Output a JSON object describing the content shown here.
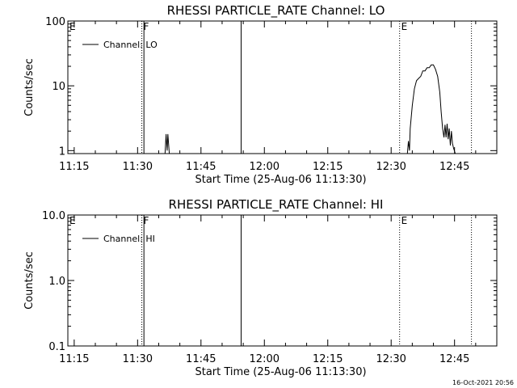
{
  "chart_data": [
    {
      "type": "line",
      "title": "RHESSI PARTICLE_RATE Channel: LO",
      "xlabel": "Start Time (25-Aug-06 11:13:30)",
      "ylabel": "Counts/sec",
      "xlim": [
        "11:13:30",
        "12:55:00"
      ],
      "yscale": "log",
      "ylim": [
        0.9,
        100
      ],
      "x_ticks": [
        "11:15",
        "11:30",
        "11:45",
        "12:00",
        "12:15",
        "12:30",
        "12:45"
      ],
      "y_ticks": [
        {
          "value": 1,
          "label": "1"
        },
        {
          "value": 10,
          "label": "10"
        },
        {
          "value": 100,
          "label": "100"
        }
      ],
      "legend": {
        "label": "Channel: LO",
        "position": "top-left"
      },
      "markers": [
        {
          "time": "11:13:30",
          "label": "E",
          "style": "solid"
        },
        {
          "time": "11:31:00",
          "label": "F",
          "style": "dotted"
        },
        {
          "time": "11:31:30",
          "label": "",
          "style": "solid"
        },
        {
          "time": "11:54:30",
          "label": "",
          "style": "solid"
        },
        {
          "time": "12:32:00",
          "label": "E",
          "style": "dotted"
        },
        {
          "time": "12:49:00",
          "label": "",
          "style": "dotted"
        }
      ],
      "series": [
        {
          "name": "Channel: LO",
          "segments": [
            [
              {
                "t": "11:36:30",
                "v": 0.9
              },
              {
                "t": "11:36:45",
                "v": 1.8
              },
              {
                "t": "11:37:00",
                "v": 1.0
              },
              {
                "t": "11:37:10",
                "v": 1.8
              },
              {
                "t": "11:37:30",
                "v": 0.9
              }
            ],
            [
              {
                "t": "12:33:50",
                "v": 0.9
              },
              {
                "t": "12:34:05",
                "v": 1.4
              },
              {
                "t": "12:34:20",
                "v": 1.0
              },
              {
                "t": "12:34:30",
                "v": 2.2
              },
              {
                "t": "12:35:00",
                "v": 5.0
              },
              {
                "t": "12:35:30",
                "v": 9.0
              },
              {
                "t": "12:36:00",
                "v": 12.0
              },
              {
                "t": "12:36:30",
                "v": 13.0
              },
              {
                "t": "12:37:00",
                "v": 14.0
              },
              {
                "t": "12:37:30",
                "v": 17.0
              },
              {
                "t": "12:38:00",
                "v": 17.0
              },
              {
                "t": "12:38:30",
                "v": 19.0
              },
              {
                "t": "12:39:00",
                "v": 19.0
              },
              {
                "t": "12:39:30",
                "v": 21.0
              },
              {
                "t": "12:40:00",
                "v": 21.0
              },
              {
                "t": "12:40:30",
                "v": 18.0
              },
              {
                "t": "12:41:00",
                "v": 14.0
              },
              {
                "t": "12:41:30",
                "v": 8.0
              },
              {
                "t": "12:41:50",
                "v": 4.0
              },
              {
                "t": "12:42:10",
                "v": 2.2
              },
              {
                "t": "12:42:30",
                "v": 1.6
              },
              {
                "t": "12:42:45",
                "v": 2.5
              },
              {
                "t": "12:43:00",
                "v": 1.6
              },
              {
                "t": "12:43:15",
                "v": 2.6
              },
              {
                "t": "12:43:30",
                "v": 1.5
              },
              {
                "t": "12:43:45",
                "v": 2.2
              },
              {
                "t": "12:44:00",
                "v": 1.2
              },
              {
                "t": "12:44:15",
                "v": 2.0
              },
              {
                "t": "12:44:30",
                "v": 1.3
              },
              {
                "t": "12:44:45",
                "v": 1.1
              },
              {
                "t": "12:45:10",
                "v": 0.9
              }
            ]
          ]
        }
      ]
    },
    {
      "type": "line",
      "title": "RHESSI PARTICLE_RATE Channel: HI",
      "xlabel": "Start Time (25-Aug-06 11:13:30)",
      "ylabel": "Counts/sec",
      "xlim": [
        "11:13:30",
        "12:55:00"
      ],
      "yscale": "log",
      "ylim": [
        0.1,
        10
      ],
      "x_ticks": [
        "11:15",
        "11:30",
        "11:45",
        "12:00",
        "12:15",
        "12:30",
        "12:45"
      ],
      "y_ticks": [
        {
          "value": 0.1,
          "label": "0.1"
        },
        {
          "value": 1,
          "label": "1.0"
        },
        {
          "value": 10,
          "label": "10.0"
        }
      ],
      "legend": {
        "label": "Channel: HI",
        "position": "top-left"
      },
      "markers": [
        {
          "time": "11:13:30",
          "label": "E",
          "style": "solid"
        },
        {
          "time": "11:31:00",
          "label": "F",
          "style": "dotted"
        },
        {
          "time": "11:31:30",
          "label": "",
          "style": "solid"
        },
        {
          "time": "11:54:30",
          "label": "",
          "style": "solid"
        },
        {
          "time": "12:32:00",
          "label": "E",
          "style": "dotted"
        },
        {
          "time": "12:49:00",
          "label": "",
          "style": "dotted"
        }
      ],
      "series": [
        {
          "name": "Channel: HI",
          "segments": []
        }
      ]
    }
  ],
  "footer": {
    "timestamp": "16-Oct-2021 20:56"
  }
}
